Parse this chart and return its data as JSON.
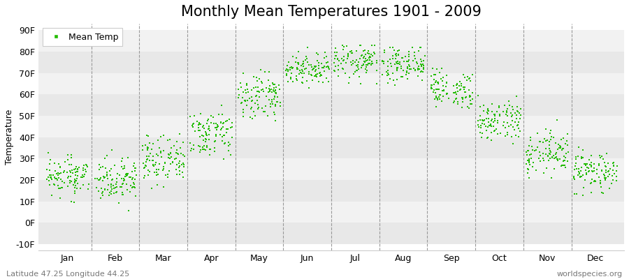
{
  "title": "Monthly Mean Temperatures 1901 - 2009",
  "ylabel": "Temperature",
  "xlabel_labels": [
    "Jan",
    "Feb",
    "Mar",
    "Apr",
    "May",
    "Jun",
    "Jul",
    "Aug",
    "Sep",
    "Oct",
    "Nov",
    "Dec"
  ],
  "ytick_labels": [
    "-10F",
    "0F",
    "10F",
    "20F",
    "30F",
    "40F",
    "50F",
    "60F",
    "70F",
    "80F",
    "90F"
  ],
  "ytick_values": [
    -10,
    0,
    10,
    20,
    30,
    40,
    50,
    60,
    70,
    80,
    90
  ],
  "ylim": [
    -13,
    93
  ],
  "background_color": "#ffffff",
  "plot_bg_color": "#ffffff",
  "band_color_dark": "#e8e8e8",
  "band_color_light": "#f2f2f2",
  "dot_color": "#22bb00",
  "dot_size": 4,
  "title_fontsize": 15,
  "axis_fontsize": 9,
  "tick_fontsize": 9,
  "legend_label": "Mean Temp",
  "watermark": "worldspecies.org",
  "caption": "Latitude 47.25 Longitude 44.25",
  "monthly_means": [
    22,
    20,
    28,
    42,
    60,
    72,
    76,
    74,
    62,
    47,
    33,
    24
  ],
  "monthly_stds": [
    4,
    5,
    6,
    5,
    5,
    4,
    4,
    4,
    5,
    5,
    5,
    5
  ],
  "monthly_mins": [
    0,
    -2,
    10,
    26,
    44,
    60,
    65,
    63,
    50,
    30,
    15,
    6
  ],
  "monthly_maxs": [
    33,
    34,
    42,
    55,
    72,
    82,
    83,
    82,
    72,
    60,
    48,
    38
  ],
  "n_years": 109
}
